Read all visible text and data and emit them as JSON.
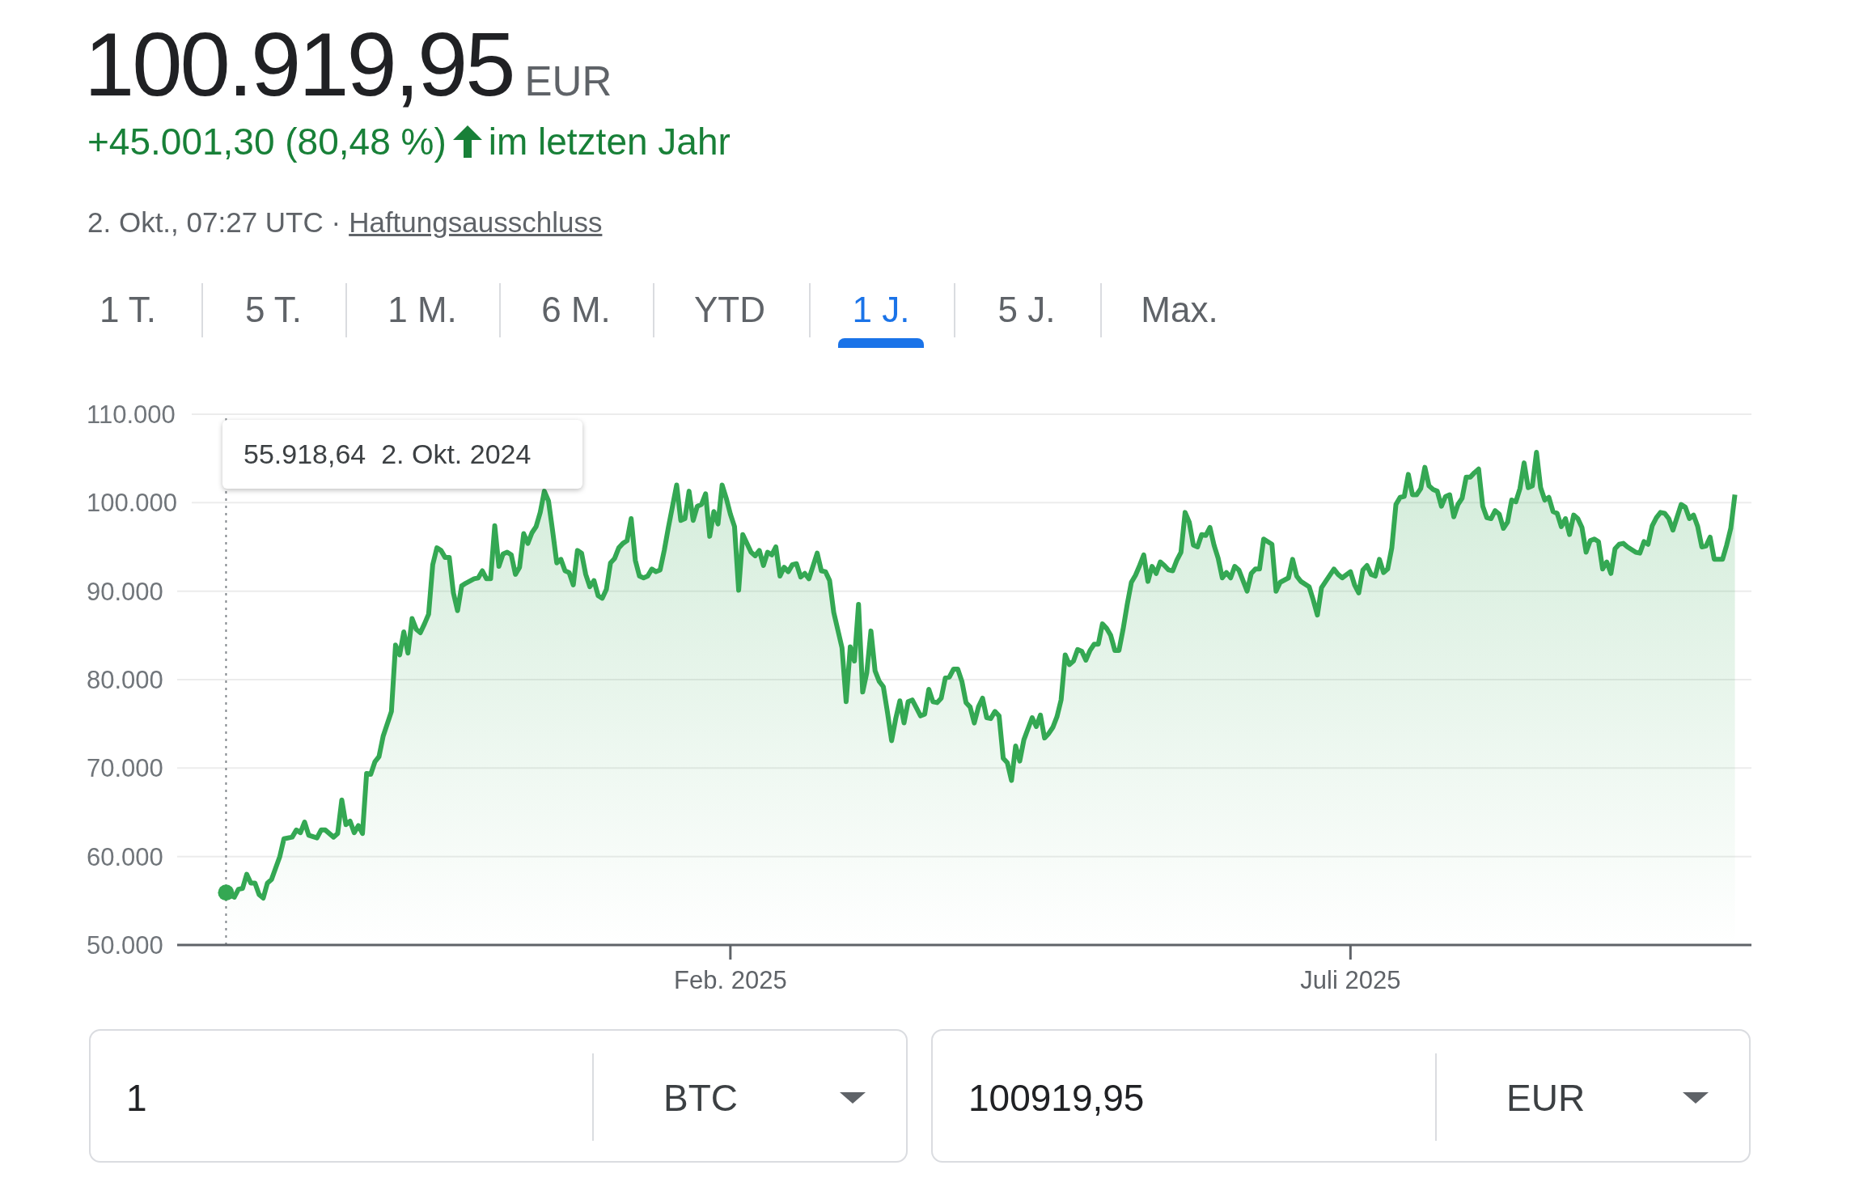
{
  "chart_data": {
    "type": "area",
    "title": "100.919,95",
    "annotations": [
      "EUR",
      "+45.001,30 (80,48 %)",
      "im letzten Jahr",
      "2. Okt., 07:27 UTC ·",
      "Haftungsausschluss",
      "1 T.",
      "5 T.",
      "1 M.",
      "6 M.",
      "YTD",
      "1 J.",
      "5 J.",
      "Max.",
      "55.918,64  2. Okt. 2024",
      "1",
      "BTC",
      "100919,95",
      "EUR"
    ],
    "color": "#34a853",
    "x": [
      "2024-10-02",
      "2024-10-04",
      "2024-10-05",
      "2024-10-06",
      "2024-10-07",
      "2024-10-08",
      "2024-10-09",
      "2024-10-10",
      "2024-10-11",
      "2024-10-12",
      "2024-10-13",
      "2024-10-15",
      "2024-10-16",
      "2024-10-18",
      "2024-10-19",
      "2024-10-20",
      "2024-10-21",
      "2024-10-22",
      "2024-10-24",
      "2024-10-25",
      "2024-10-26",
      "2024-10-28",
      "2024-10-29",
      "2024-10-30",
      "2024-10-31",
      "2024-11-01",
      "2024-11-02",
      "2024-11-03",
      "2024-11-04",
      "2024-11-05",
      "2024-11-06",
      "2024-11-07",
      "2024-11-08",
      "2024-11-09",
      "2024-11-11",
      "2024-11-12",
      "2024-11-13",
      "2024-11-14",
      "2024-11-15",
      "2024-11-16",
      "2024-11-17",
      "2024-11-18",
      "2024-11-19",
      "2024-11-20",
      "2024-11-21",
      "2024-11-22",
      "2024-11-23",
      "2024-11-24",
      "2024-11-25",
      "2024-11-26",
      "2024-11-27",
      "2024-11-28",
      "2024-11-29",
      "2024-12-01",
      "2024-12-02",
      "2024-12-03",
      "2024-12-04",
      "2024-12-05",
      "2024-12-06",
      "2024-12-07",
      "2024-12-08",
      "2024-12-09",
      "2024-12-10",
      "2024-12-11",
      "2024-12-12",
      "2024-12-13",
      "2024-12-14",
      "2024-12-15",
      "2024-12-16",
      "2024-12-17",
      "2024-12-18",
      "2024-12-19",
      "2024-12-20",
      "2024-12-21",
      "2024-12-22",
      "2024-12-23",
      "2024-12-24",
      "2024-12-25",
      "2024-12-26",
      "2024-12-27",
      "2024-12-28",
      "2024-12-29",
      "2024-12-30",
      "2024-12-31",
      "2025-01-01",
      "2025-01-02",
      "2025-01-03",
      "2025-01-04",
      "2025-01-05",
      "2025-01-06",
      "2025-01-07",
      "2025-01-08",
      "2025-01-09",
      "2025-01-10",
      "2025-01-11",
      "2025-01-12",
      "2025-01-13",
      "2025-01-14",
      "2025-01-15",
      "2025-01-16",
      "2025-01-17",
      "2025-01-18",
      "2025-01-19",
      "2025-01-20",
      "2025-01-21",
      "2025-01-22",
      "2025-01-23",
      "2025-01-24",
      "2025-01-25",
      "2025-01-26",
      "2025-01-27",
      "2025-01-28",
      "2025-01-29",
      "2025-01-30",
      "2025-01-31",
      "2025-02-01",
      "2025-02-02",
      "2025-02-03",
      "2025-02-04",
      "2025-02-06",
      "2025-02-07",
      "2025-02-08",
      "2025-02-09",
      "2025-02-10",
      "2025-02-11",
      "2025-02-12",
      "2025-02-13",
      "2025-02-14",
      "2025-02-15",
      "2025-02-16",
      "2025-02-17",
      "2025-02-18",
      "2025-02-19",
      "2025-02-20",
      "2025-02-22",
      "2025-02-23",
      "2025-02-24",
      "2025-02-25",
      "2025-02-26",
      "2025-02-28",
      "2025-03-01",
      "2025-03-02",
      "2025-03-03",
      "2025-03-04",
      "2025-03-05",
      "2025-03-06",
      "2025-03-07",
      "2025-03-08",
      "2025-03-09",
      "2025-03-10",
      "2025-03-11",
      "2025-03-12",
      "2025-03-13",
      "2025-03-14",
      "2025-03-15",
      "2025-03-16",
      "2025-03-17",
      "2025-03-18",
      "2025-03-19",
      "2025-03-20",
      "2025-03-21",
      "2025-03-22",
      "2025-03-23",
      "2025-03-24",
      "2025-03-25",
      "2025-03-26",
      "2025-03-27",
      "2025-03-28",
      "2025-03-29",
      "2025-03-30",
      "2025-03-31",
      "2025-04-01",
      "2025-04-02",
      "2025-04-03",
      "2025-04-04",
      "2025-04-05",
      "2025-04-06",
      "2025-04-07",
      "2025-04-08",
      "2025-04-09",
      "2025-04-10",
      "2025-04-11",
      "2025-04-12",
      "2025-04-13",
      "2025-04-15",
      "2025-04-16",
      "2025-04-17",
      "2025-04-18",
      "2025-04-19",
      "2025-04-20",
      "2025-04-21",
      "2025-04-22",
      "2025-04-23",
      "2025-04-24",
      "2025-04-25",
      "2025-04-26",
      "2025-04-27",
      "2025-04-28",
      "2025-04-29",
      "2025-04-30",
      "2025-05-01",
      "2025-05-02",
      "2025-05-03",
      "2025-05-04",
      "2025-05-05",
      "2025-05-06",
      "2025-05-07",
      "2025-05-08",
      "2025-05-09",
      "2025-05-10",
      "2025-05-11",
      "2025-05-12",
      "2025-05-13",
      "2025-05-14",
      "2025-05-15",
      "2025-05-16",
      "2025-05-17",
      "2025-05-18",
      "2025-05-19",
      "2025-05-20",
      "2025-05-21",
      "2025-05-22",
      "2025-05-23",
      "2025-05-24",
      "2025-05-25",
      "2025-05-26",
      "2025-05-27",
      "2025-05-28",
      "2025-05-29",
      "2025-05-30",
      "2025-05-31",
      "2025-06-01",
      "2025-06-02",
      "2025-06-03",
      "2025-06-04",
      "2025-06-06",
      "2025-06-07",
      "2025-06-08",
      "2025-06-09",
      "2025-06-10",
      "2025-06-12",
      "2025-06-13",
      "2025-06-14",
      "2025-06-16",
      "2025-06-17",
      "2025-06-18",
      "2025-06-19",
      "2025-06-21",
      "2025-06-22",
      "2025-06-23",
      "2025-06-24",
      "2025-06-25",
      "2025-06-27",
      "2025-06-28",
      "2025-06-29",
      "2025-07-01",
      "2025-07-02",
      "2025-07-03",
      "2025-07-04",
      "2025-07-05",
      "2025-07-06",
      "2025-07-07",
      "2025-07-08",
      "2025-07-09",
      "2025-07-10",
      "2025-07-11",
      "2025-07-12",
      "2025-07-13",
      "2025-07-14",
      "2025-07-15",
      "2025-07-16",
      "2025-07-17",
      "2025-07-18",
      "2025-07-19",
      "2025-07-20",
      "2025-07-21",
      "2025-07-22",
      "2025-07-23",
      "2025-07-24",
      "2025-07-25",
      "2025-07-26",
      "2025-07-27",
      "2025-07-28",
      "2025-07-29",
      "2025-07-30",
      "2025-07-31",
      "2025-08-01",
      "2025-08-02",
      "2025-08-03",
      "2025-08-04",
      "2025-08-05",
      "2025-08-06",
      "2025-08-07",
      "2025-08-08",
      "2025-08-09",
      "2025-08-10",
      "2025-08-11",
      "2025-08-12",
      "2025-08-13",
      "2025-08-14",
      "2025-08-15",
      "2025-08-16",
      "2025-08-17",
      "2025-08-18",
      "2025-08-19",
      "2025-08-20",
      "2025-08-21",
      "2025-08-22",
      "2025-08-23",
      "2025-08-24",
      "2025-08-25",
      "2025-08-26",
      "2025-08-27",
      "2025-08-28",
      "2025-08-29",
      "2025-08-30",
      "2025-08-31",
      "2025-09-01",
      "2025-09-02",
      "2025-09-03",
      "2025-09-04",
      "2025-09-05",
      "2025-09-06",
      "2025-09-07",
      "2025-09-08",
      "2025-09-09",
      "2025-09-10",
      "2025-09-11",
      "2025-09-12",
      "2025-09-13",
      "2025-09-14",
      "2025-09-15",
      "2025-09-16",
      "2025-09-17",
      "2025-09-19",
      "2025-09-20",
      "2025-09-21",
      "2025-09-22",
      "2025-09-23",
      "2025-09-24",
      "2025-09-25",
      "2025-09-26",
      "2025-09-27",
      "2025-09-28",
      "2025-09-29",
      "2025-09-30",
      "2025-10-01",
      "2025-10-02"
    ],
    "values": [
      55918.64,
      55400,
      56300,
      56400,
      58000,
      57000,
      57000,
      55700,
      55300,
      57000,
      57400,
      60000,
      62000,
      62200,
      63000,
      62700,
      63900,
      62400,
      62100,
      63000,
      63000,
      62200,
      62600,
      66400,
      63600,
      64000,
      62700,
      63500,
      62600,
      69400,
      69300,
      70700,
      71300,
      73600,
      76400,
      83900,
      82800,
      85400,
      83000,
      86900,
      85700,
      85300,
      86300,
      87400,
      93000,
      94900,
      94600,
      93800,
      93800,
      89800,
      87800,
      90600,
      90900,
      91400,
      91500,
      92300,
      91400,
      91400,
      97400,
      92800,
      94200,
      94400,
      94100,
      91900,
      92700,
      96500,
      95400,
      96600,
      97300,
      98900,
      101300,
      100200,
      96800,
      93200,
      93600,
      92300,
      92100,
      90700,
      94600,
      94300,
      91900,
      90500,
      91200,
      89500,
      89200,
      90200,
      93200,
      93700,
      94900,
      95400,
      95700,
      98200,
      93500,
      91700,
      91500,
      91700,
      92500,
      92200,
      92400,
      94600,
      97200,
      99600,
      102000,
      98000,
      98200,
      101300,
      98000,
      99600,
      99800,
      101000,
      96200,
      99000,
      97600,
      102000,
      100500,
      98700,
      97300,
      90100,
      96400,
      94400,
      94000,
      94600,
      92900,
      94400,
      94100,
      95000,
      91700,
      92700,
      92200,
      93000,
      93100,
      91600,
      92000,
      91400,
      94300,
      92300,
      92200,
      91200,
      87600,
      83600,
      77500,
      83700,
      82100,
      88500,
      78600,
      80800,
      85500,
      81000,
      79800,
      79200,
      76300,
      73100,
      75600,
      77600,
      75100,
      77500,
      77700,
      76800,
      75900,
      76100,
      78900,
      77500,
      77400,
      77900,
      80200,
      80300,
      81200,
      81200,
      79800,
      77400,
      76900,
      75100,
      76900,
      77900,
      75700,
      75600,
      76400,
      75900,
      71100,
      70600,
      68600,
      72500,
      70800,
      73200,
      75700,
      74700,
      76000,
      73400,
      73900,
      74600,
      75800,
      77700,
      82800,
      81700,
      82100,
      83400,
      83200,
      82200,
      83300,
      84000,
      84000,
      86300,
      85800,
      85000,
      83300,
      83300,
      85700,
      88500,
      91000,
      91800,
      92900,
      94100,
      91100,
      92800,
      92000,
      93300,
      92900,
      92400,
      92300,
      93500,
      94400,
      98900,
      97800,
      95200,
      95000,
      96400,
      96300,
      97200,
      95200,
      93700,
      91500,
      92100,
      91500,
      92800,
      92400,
      90000,
      92000,
      92500,
      92500,
      95900,
      95300,
      90000,
      91000,
      91500,
      93600,
      91700,
      91100,
      90500,
      89000,
      87300,
      90400,
      91100,
      92500,
      91900,
      91500,
      92200,
      90700,
      89800,
      92400,
      92900,
      91900,
      91700,
      93600,
      92100,
      92500,
      94900,
      99800,
      100600,
      100700,
      103200,
      100900,
      100900,
      101600,
      104000,
      101900,
      101500,
      101300,
      99600,
      100700,
      100900,
      98400,
      99800,
      100500,
      102900,
      102900,
      103400,
      103800,
      99600,
      98300,
      98200,
      99100,
      98700,
      97100,
      97800,
      100300,
      100100,
      101600,
      104500,
      101700,
      101900,
      105700,
      101700,
      100300,
      100600,
      99000,
      98800,
      97300,
      98200,
      96400,
      98600,
      98200,
      97200,
      94400,
      95700,
      95900,
      95600,
      92500,
      93300,
      92000,
      94800,
      95300,
      95400,
      95000,
      94700,
      94400,
      94300,
      95600,
      95300,
      97400,
      98300,
      98900,
      98800,
      98200,
      96900,
      99800,
      99500,
      98200,
      98600,
      97300,
      95000,
      95100,
      96100,
      93600,
      93600,
      93600,
      95200,
      97100,
      100919.95
    ],
    "xlim": [
      "2024-09-19",
      "2025-10-06"
    ],
    "xticks": [
      {
        "value": "2025-02-01",
        "label": "Feb. 2025"
      },
      {
        "value": "2025-07-01",
        "label": "Juli 2025"
      }
    ],
    "ylim": [
      50000,
      110000
    ],
    "yticks": [
      {
        "value": 50000,
        "label": "50.000"
      },
      {
        "value": 60000,
        "label": "60.000"
      },
      {
        "value": 70000,
        "label": "70.000"
      },
      {
        "value": 80000,
        "label": "80.000"
      },
      {
        "value": 90000,
        "label": "90.000"
      },
      {
        "value": 100000,
        "label": "100.000"
      },
      {
        "value": 110000,
        "label": "110.000"
      }
    ],
    "grid": "y",
    "ref_lines": [
      {
        "axis": "x",
        "value": "2024-10-02",
        "line_style": "dotted",
        "color": "#80868b"
      }
    ]
  }
}
